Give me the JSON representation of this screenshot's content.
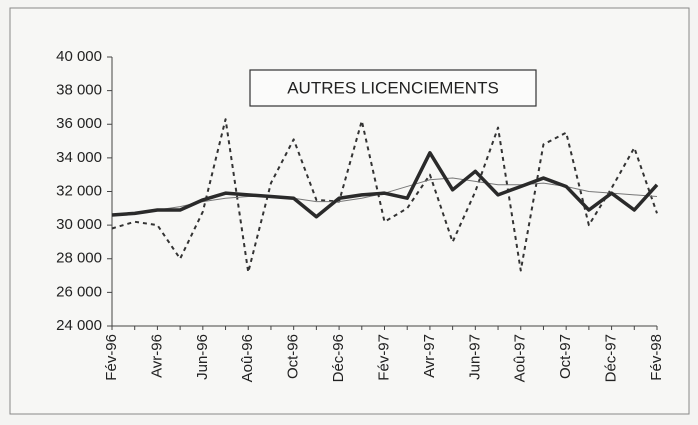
{
  "chart_data": {
    "type": "line",
    "title": "AUTRES LICENCIEMENTS",
    "categories": [
      "Fév-96",
      null,
      "Avr-96",
      null,
      "Jun-96",
      null,
      "Aoû-96",
      null,
      "Oct-96",
      null,
      "Déc-96",
      null,
      "Fév-97",
      null,
      "Avr-97",
      null,
      "Jun-97",
      null,
      "Aoû-97",
      null,
      "Oct-97",
      null,
      "Déc-97",
      null,
      "Fév-98"
    ],
    "series": [
      {
        "color": "#333333",
        "style": "dotted",
        "values": [
          29800,
          30200,
          30000,
          28000,
          30800,
          36300,
          27200,
          32500,
          35100,
          31500,
          31400,
          36200,
          30200,
          31000,
          33000,
          29000,
          32000,
          35800,
          27300,
          34800,
          35500,
          30000,
          32200,
          34600,
          30700
        ]
      },
      {
        "color": "#777777",
        "style": "thin",
        "values": [
          30600,
          30700,
          30900,
          31100,
          31400,
          31600,
          31700,
          31700,
          31600,
          31400,
          31400,
          31600,
          31900,
          32300,
          32700,
          32800,
          32600,
          32400,
          32400,
          32500,
          32300,
          32000,
          31900,
          31800,
          31700
        ]
      },
      {
        "color": "#2a2a2a",
        "style": "thick",
        "values": [
          30600,
          30700,
          30900,
          30900,
          31500,
          31900,
          31800,
          31700,
          31600,
          30500,
          31600,
          31800,
          31900,
          31600,
          34300,
          32100,
          33200,
          31800,
          32300,
          32800,
          32300,
          30900,
          31900,
          30900,
          32400
        ]
      }
    ],
    "ylim": [
      24000,
      40000
    ],
    "yticks": [
      {
        "value": 24000,
        "label": "24 000"
      },
      {
        "value": 26000,
        "label": "26 000"
      },
      {
        "value": 28000,
        "label": "28 000"
      },
      {
        "value": 30000,
        "label": "30 000"
      },
      {
        "value": 32000,
        "label": "32 000"
      },
      {
        "value": 34000,
        "label": "34 000"
      },
      {
        "value": 36000,
        "label": "36 000"
      },
      {
        "value": 38000,
        "label": "38 000"
      },
      {
        "value": 40000,
        "label": "40 000"
      }
    ],
    "grid": false
  }
}
